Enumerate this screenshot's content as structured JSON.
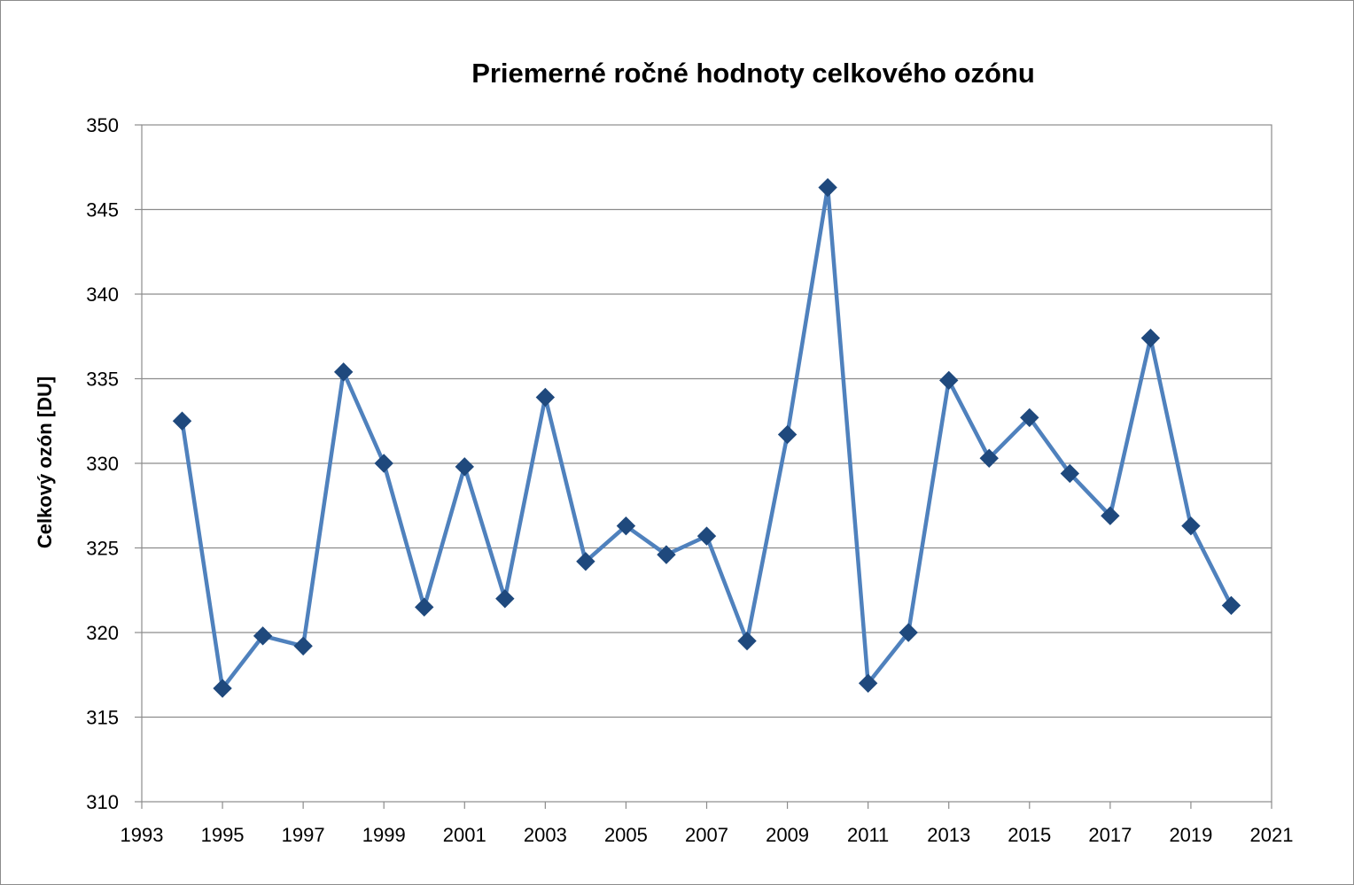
{
  "chart_data": {
    "type": "line",
    "title": "Priemerné ročné hodnoty celkového ozónu",
    "xlabel": "",
    "ylabel": "Celkový ozón [DU]",
    "xlim": [
      1993,
      2021
    ],
    "ylim": [
      310,
      350
    ],
    "x_ticks": [
      "1993",
      "1995",
      "1997",
      "1999",
      "2001",
      "2003",
      "2005",
      "2007",
      "2009",
      "2011",
      "2013",
      "2015",
      "2017",
      "2019",
      "2021"
    ],
    "y_ticks": [
      "310",
      "315",
      "320",
      "325",
      "330",
      "335",
      "340",
      "345",
      "350"
    ],
    "grid": "horizontal",
    "legend": "none",
    "series": [
      {
        "color": "#4F81BD",
        "marker_color": "#1F497D",
        "marker": "diamond",
        "x": [
          1994,
          1995,
          1996,
          1997,
          1998,
          1999,
          2000,
          2001,
          2002,
          2003,
          2004,
          2005,
          2006,
          2007,
          2008,
          2009,
          2010,
          2011,
          2012,
          2013,
          2014,
          2015,
          2016,
          2017,
          2018,
          2019,
          2020
        ],
        "values": [
          332.5,
          316.7,
          319.8,
          319.2,
          335.4,
          330.0,
          321.5,
          329.8,
          322.0,
          333.9,
          324.2,
          326.3,
          324.6,
          325.7,
          319.5,
          331.7,
          346.3,
          317.0,
          320.0,
          334.9,
          330.3,
          332.7,
          329.4,
          326.9,
          337.4,
          326.3,
          321.6
        ]
      }
    ]
  }
}
